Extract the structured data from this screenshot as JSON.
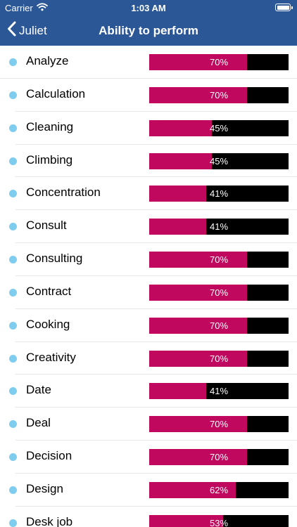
{
  "status_bar": {
    "carrier": "Carrier",
    "time": "1:03 AM",
    "wifi_icon": "wifi-icon",
    "battery_icon": "battery-icon"
  },
  "nav": {
    "back_label": "Juliet",
    "back_icon": "chevron-left-icon",
    "title": "Ability to perform"
  },
  "colors": {
    "nav_background": "#2b5797",
    "bar_fill": "#c0085e",
    "bar_track": "#000000",
    "bullet": "#7fcdee"
  },
  "items": [
    {
      "label": "Analyze",
      "percent": 70,
      "value_text": "70%"
    },
    {
      "label": "Calculation",
      "percent": 70,
      "value_text": "70%"
    },
    {
      "label": "Cleaning",
      "percent": 45,
      "value_text": "45%"
    },
    {
      "label": "Climbing",
      "percent": 45,
      "value_text": "45%"
    },
    {
      "label": "Concentration",
      "percent": 41,
      "value_text": "41%"
    },
    {
      "label": "Consult",
      "percent": 41,
      "value_text": "41%"
    },
    {
      "label": "Consulting",
      "percent": 70,
      "value_text": "70%"
    },
    {
      "label": "Contract",
      "percent": 70,
      "value_text": "70%"
    },
    {
      "label": "Cooking",
      "percent": 70,
      "value_text": "70%"
    },
    {
      "label": "Creativity",
      "percent": 70,
      "value_text": "70%"
    },
    {
      "label": "Date",
      "percent": 41,
      "value_text": "41%"
    },
    {
      "label": "Deal",
      "percent": 70,
      "value_text": "70%"
    },
    {
      "label": "Decision",
      "percent": 70,
      "value_text": "70%"
    },
    {
      "label": "Design",
      "percent": 62,
      "value_text": "62%"
    },
    {
      "label": "Desk job",
      "percent": 53,
      "value_text": "53%"
    }
  ]
}
